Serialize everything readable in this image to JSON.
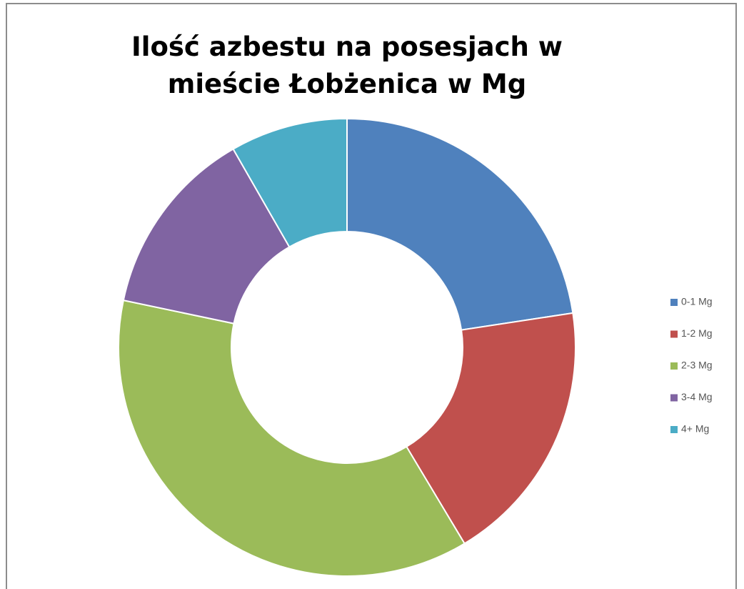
{
  "chart_data": {
    "type": "donut",
    "title": "Ilość azbestu na posesjach w mieście Łobżenica w Mg",
    "categories": [
      "0-1 Mg",
      "1-2 Mg",
      "2-3 Mg",
      "3-4 Mg",
      "4+ Mg"
    ],
    "values": [
      22.6,
      18.8,
      36.9,
      13.4,
      8.3
    ],
    "colors": [
      "#4f81bd",
      "#c0504d",
      "#9bbb59",
      "#8064a2",
      "#4bacc6"
    ],
    "legend": "right"
  }
}
